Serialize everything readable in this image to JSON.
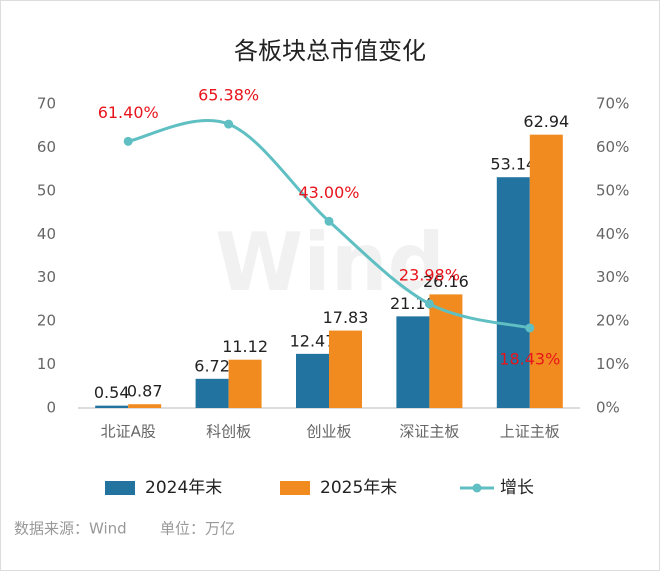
{
  "chart_data": {
    "type": "bar_line",
    "title": "各板块总市值变化",
    "categories": [
      "北证A股",
      "科创板",
      "创业板",
      "深证主板",
      "上证主板"
    ],
    "series": [
      {
        "name": "2024年末",
        "color": "#22739f",
        "values": [
          0.54,
          6.72,
          12.47,
          21.1,
          53.14
        ],
        "value_labels": [
          "0.54",
          "6.72",
          "12.47",
          "21.10",
          "53.14"
        ]
      },
      {
        "name": "2025年末",
        "color": "#f28b1f",
        "values": [
          0.87,
          11.12,
          17.83,
          26.16,
          62.94
        ],
        "value_labels": [
          "0.87",
          "11.12",
          "17.83",
          "26.16",
          "62.94"
        ]
      },
      {
        "name": "增长",
        "type": "line",
        "axis": "y2",
        "color": "#5fbfc2",
        "values": [
          61.4,
          65.38,
          43.0,
          23.98,
          18.43
        ],
        "value_labels": [
          "61.40%",
          "65.38%",
          "43.00%",
          "23.98%",
          "18.43%"
        ],
        "label_color": "#e8141b"
      }
    ],
    "ylim": [
      0,
      70
    ],
    "yticks": [
      0,
      10,
      20,
      30,
      40,
      50,
      60,
      70
    ],
    "y2lim": [
      0,
      70
    ],
    "y2ticks": [
      {
        "value": 0,
        "label": "0%"
      },
      {
        "value": 10,
        "label": "10%"
      },
      {
        "value": 20,
        "label": "20%"
      },
      {
        "value": 30,
        "label": "30%"
      },
      {
        "value": 40,
        "label": "40%"
      },
      {
        "value": 50,
        "label": "50%"
      },
      {
        "value": 60,
        "label": "60%"
      },
      {
        "value": 70,
        "label": "70%"
      }
    ],
    "grid": false,
    "legend": "bottom",
    "watermark": "Wind",
    "source": "数据来源：Wind",
    "unit": "单位：万亿"
  }
}
